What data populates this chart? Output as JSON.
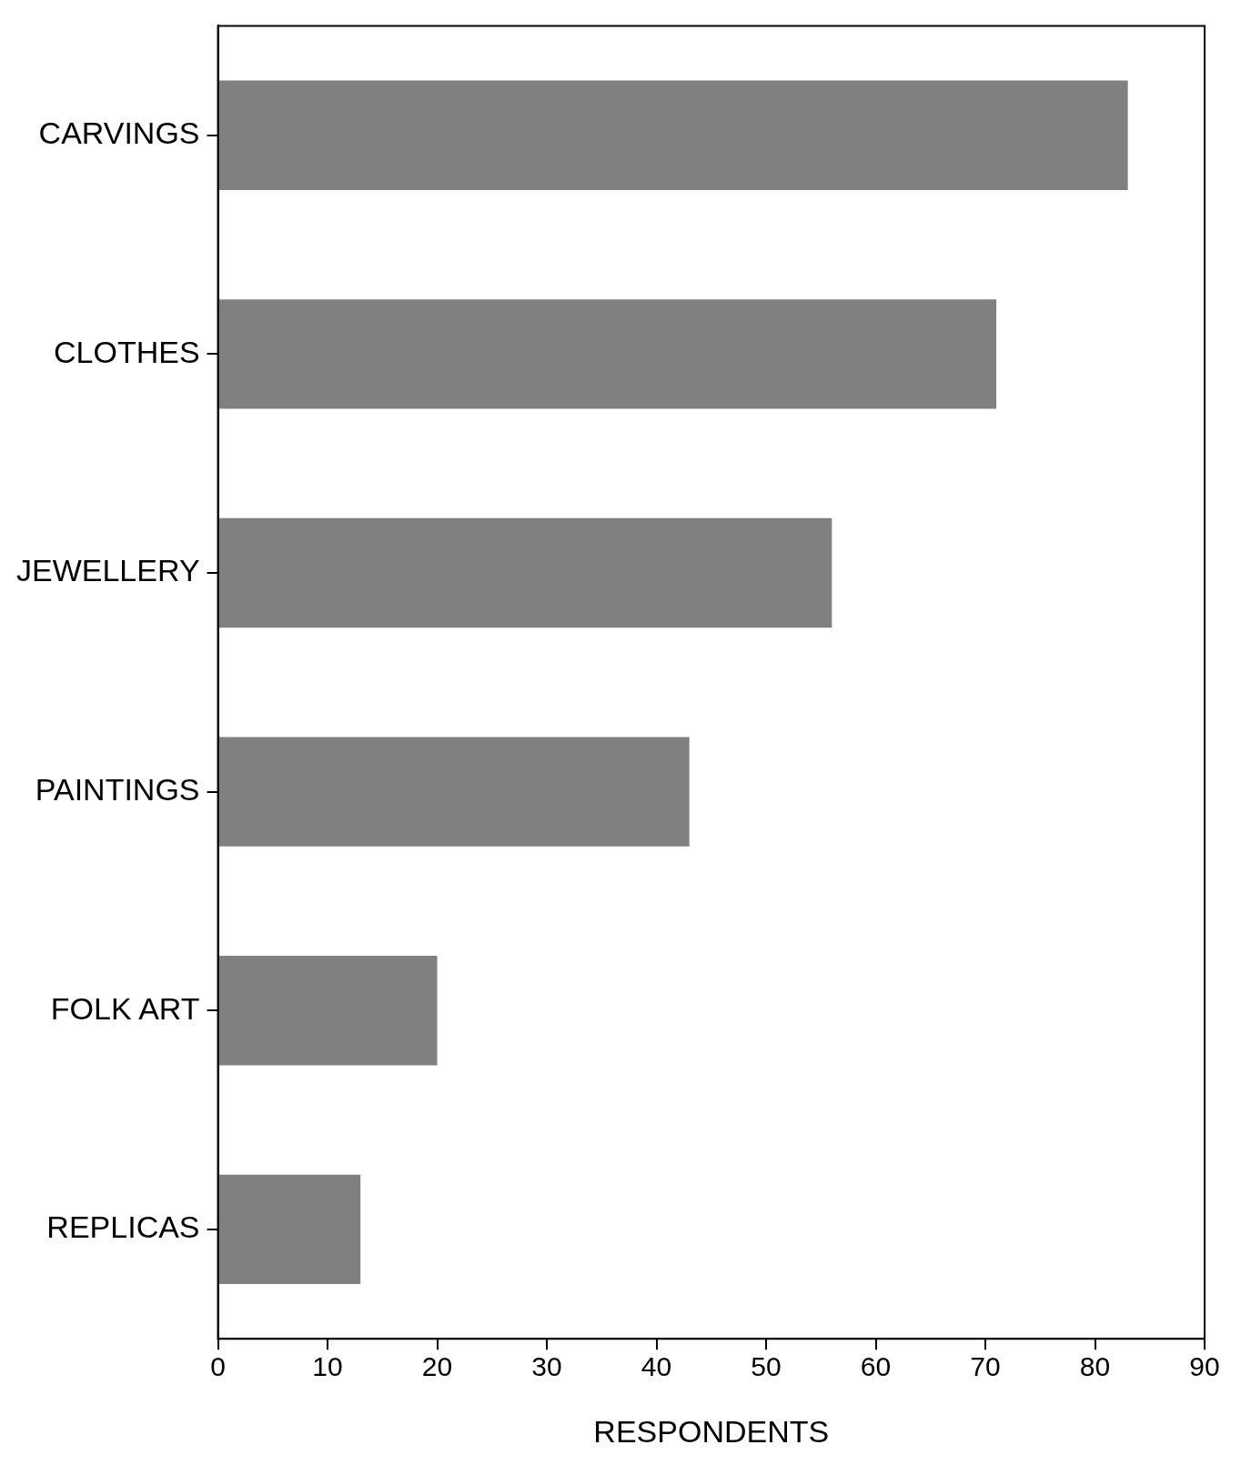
{
  "chart_data": {
    "type": "bar",
    "orientation": "horizontal",
    "xlabel": "RESPONDENTS",
    "categories": [
      "CARVINGS",
      "CLOTHES",
      "JEWELLERY",
      "PAINTINGS",
      "FOLK ART",
      "REPLICAS"
    ],
    "values": [
      83,
      71,
      56,
      43,
      20,
      13
    ],
    "color": "#808080",
    "xlim": [
      0,
      90
    ],
    "xticks": [
      0,
      10,
      20,
      30,
      40,
      50,
      60,
      70,
      80,
      90
    ],
    "grid": false,
    "legend": false
  }
}
